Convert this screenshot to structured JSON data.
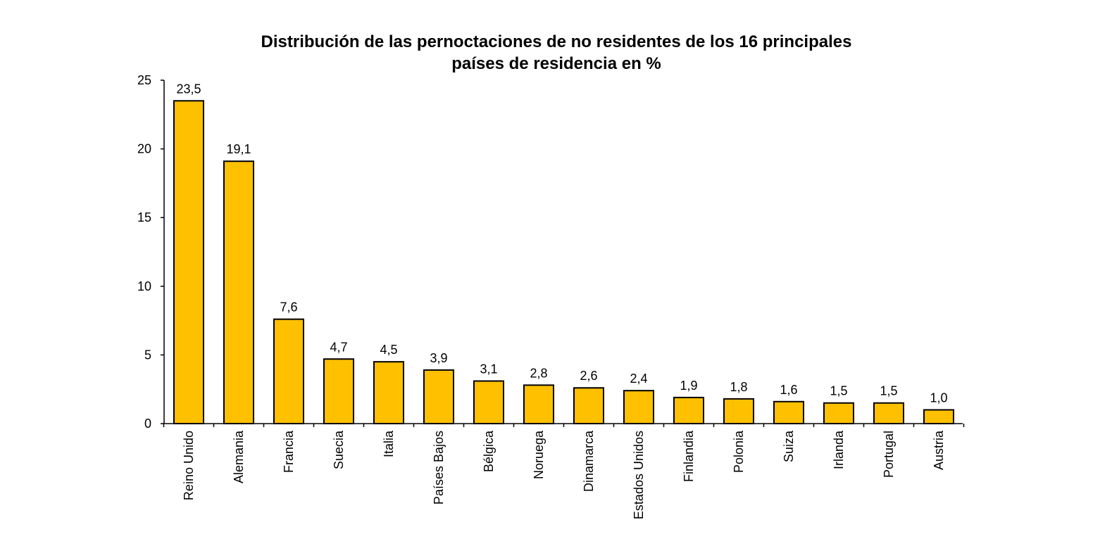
{
  "chart_data": {
    "type": "bar",
    "title_lines": [
      "Distribución de las pernoctaciones de no residentes de los 16 principales",
      "países de residencia en %"
    ],
    "xlabel": "",
    "ylabel": "",
    "ylim": [
      0,
      25
    ],
    "yticks": [
      0,
      5,
      10,
      15,
      20,
      25
    ],
    "grid": false,
    "legend": "none",
    "bar_color": "#FFC000",
    "bar_edge_color": "#000000",
    "categories": [
      "Reino Unido",
      "Alemania",
      "Francia",
      "Suecia",
      "Italia",
      "Países Bajos",
      "Bélgica",
      "Noruega",
      "Dinamarca",
      "Estados Unidos",
      "Finlandia",
      "Polonia",
      "Suiza",
      "Irlanda",
      "Portugal",
      "Austria"
    ],
    "values": [
      23.5,
      19.1,
      7.6,
      4.7,
      4.5,
      3.9,
      3.1,
      2.8,
      2.6,
      2.4,
      1.9,
      1.8,
      1.6,
      1.5,
      1.5,
      1.0
    ],
    "value_labels": [
      "23,5",
      "19,1",
      "7,6",
      "4,7",
      "4,5",
      "3,9",
      "3,1",
      "2,8",
      "2,6",
      "2,4",
      "1,9",
      "1,8",
      "1,6",
      "1,5",
      "1,5",
      "1,0"
    ]
  }
}
